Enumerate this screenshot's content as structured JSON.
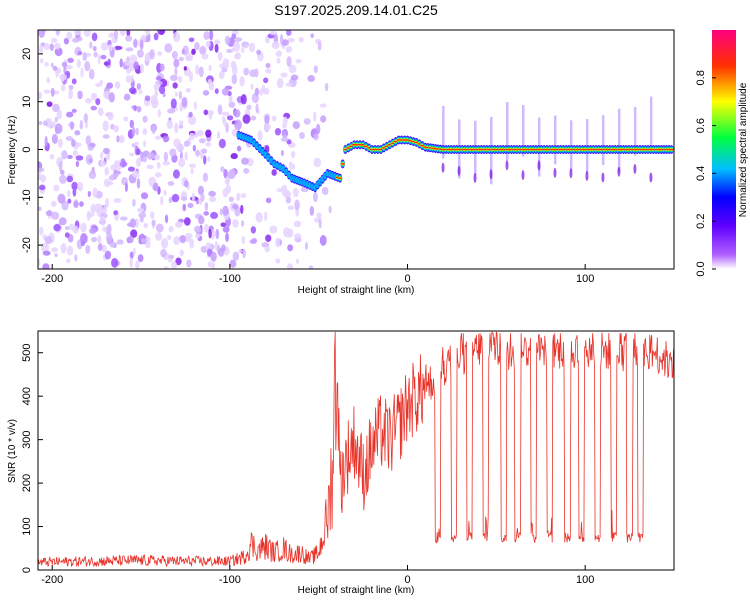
{
  "chart_data": [
    {
      "type": "heatmap",
      "title": "S197.2025.209.14.01.C25",
      "xlabel": "Height of straight line (km)",
      "ylabel": "Frequency (Hz)",
      "xlim": [
        -208,
        150
      ],
      "ylim": [
        -25,
        25
      ],
      "xticks": [
        -200,
        -100,
        0,
        100
      ],
      "yticks": [
        -20,
        -10,
        0,
        10,
        20
      ],
      "grid": false,
      "colorbar": {
        "label": "Normalized spectral amplitude",
        "range": [
          0,
          1
        ],
        "ticks": [
          "0.0",
          "0.2",
          "0.4",
          "0.6",
          "0.8"
        ],
        "tick_values": [
          0.0,
          0.2,
          0.4,
          0.6,
          0.8
        ],
        "colors": [
          "#ffffff",
          "#8000ff",
          "#0000ff",
          "#00ffff",
          "#00ff00",
          "#ffff00",
          "#ff0000",
          "#ff0080"
        ]
      },
      "series": [
        {
          "values": [
            {
              "x": -95,
              "y": 3
            },
            {
              "x": -88,
              "y": 2
            },
            {
              "x": -80,
              "y": -1
            },
            {
              "x": -75,
              "y": -3
            },
            {
              "x": -70,
              "y": -4
            },
            {
              "x": -65,
              "y": -6
            },
            {
              "x": -58,
              "y": -7
            },
            {
              "x": -52,
              "y": -8
            },
            {
              "x": -45,
              "y": -5
            },
            {
              "x": -38,
              "y": -6
            },
            {
              "x": -35,
              "y": 0
            },
            {
              "x": -30,
              "y": 1
            },
            {
              "x": -25,
              "y": 1
            },
            {
              "x": -20,
              "y": 0
            },
            {
              "x": -15,
              "y": 0
            },
            {
              "x": -10,
              "y": 1
            },
            {
              "x": -5,
              "y": 2
            },
            {
              "x": 0,
              "y": 2
            },
            {
              "x": 5,
              "y": 1.5
            },
            {
              "x": 10,
              "y": 0.5
            },
            {
              "x": 20,
              "y": 0
            },
            {
              "x": 40,
              "y": 0
            },
            {
              "x": 60,
              "y": 0
            },
            {
              "x": 80,
              "y": 0
            },
            {
              "x": 100,
              "y": 0
            },
            {
              "x": 120,
              "y": 0
            },
            {
              "x": 140,
              "y": 0
            },
            {
              "x": 150,
              "y": 0
            }
          ]
        }
      ]
    },
    {
      "type": "line",
      "xlabel": "Height of straight line (km)",
      "ylabel": "SNR (10 * v/v)",
      "xlim": [
        -208,
        150
      ],
      "ylim": [
        0,
        550
      ],
      "xticks": [
        -200,
        -100,
        0,
        100
      ],
      "yticks": [
        0,
        100,
        200,
        300,
        400,
        500
      ],
      "grid": false,
      "color": "#e8332a",
      "series": [
        {
          "x": [
            -208,
            -180,
            -150,
            -120,
            -100,
            -92,
            -88,
            -84,
            -80,
            -75,
            -70,
            -65,
            -60,
            -55,
            -50,
            -45,
            -42,
            -40,
            -38,
            -35,
            -30,
            -25,
            -20,
            -15,
            -10,
            -5,
            0,
            5,
            10,
            15,
            20,
            25,
            30,
            35,
            40,
            45,
            50,
            60,
            70,
            80,
            90,
            100,
            110,
            120,
            130,
            140,
            150
          ],
          "values": [
            18,
            20,
            22,
            20,
            20,
            30,
            60,
            45,
            55,
            40,
            50,
            35,
            40,
            25,
            40,
            120,
            250,
            530,
            200,
            250,
            300,
            220,
            280,
            320,
            300,
            330,
            380,
            400,
            420,
            440,
            460,
            480,
            490,
            500,
            510,
            520,
            510,
            500,
            510,
            500,
            510,
            500,
            505,
            500,
            505,
            500,
            470
          ],
          "dropout_x": [
            17,
            26,
            35,
            44,
            54,
            62,
            71,
            80,
            90,
            98,
            107,
            116,
            125,
            131
          ],
          "dropout_value": 75
        }
      ]
    }
  ]
}
